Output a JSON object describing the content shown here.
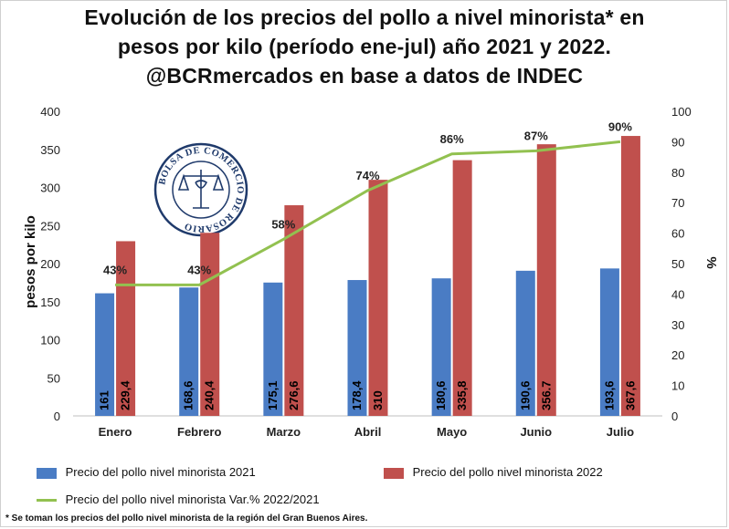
{
  "title": {
    "line1": "Evolución de los precios del pollo a nivel minorista* en",
    "line2": "pesos por kilo (período ene-jul) año 2021 y 2022.",
    "line3": "@BCRmercados en base a datos de INDEC"
  },
  "chart_data": {
    "type": "bar",
    "categories": [
      "Enero",
      "Febrero",
      "Marzo",
      "Abril",
      "Mayo",
      "Junio",
      "Julio"
    ],
    "series": [
      {
        "name": "Precio del pollo nivel minorista 2021",
        "type": "bar",
        "axis": "left",
        "values": [
          161,
          168.6,
          175.1,
          178.4,
          180.6,
          190.6,
          193.6
        ],
        "labels": [
          "161",
          "168,6",
          "175,1",
          "178,4",
          "180,6",
          "190,6",
          "193,6"
        ]
      },
      {
        "name": "Precio del pollo nivel minorista 2022",
        "type": "bar",
        "axis": "left",
        "values": [
          229.4,
          240.4,
          276.6,
          310,
          335.8,
          356.7,
          367.6
        ],
        "labels": [
          "229,4",
          "240,4",
          "276,6",
          "310",
          "335,8",
          "356.7",
          "367,6"
        ]
      },
      {
        "name": "Precio del pollo nivel minorista Var.% 2022/2021",
        "type": "line",
        "axis": "right",
        "values": [
          43,
          43,
          58,
          74,
          86,
          87,
          90
        ],
        "labels": [
          "43%",
          "43%",
          "58%",
          "74%",
          "86%",
          "87%",
          "90%"
        ]
      }
    ],
    "ylabel": "pesos por kilo",
    "y2label": "%",
    "ylim": [
      0,
      400
    ],
    "y2lim": [
      0,
      100
    ],
    "yticks": [
      "0",
      "50",
      "100",
      "150",
      "200",
      "250",
      "300",
      "350",
      "400"
    ],
    "y2ticks": [
      "0",
      "10",
      "20",
      "30",
      "40",
      "50",
      "60",
      "70",
      "80",
      "90",
      "100"
    ],
    "legend_position": "bottom",
    "grid": false
  },
  "colors": {
    "series_2021": "#4a7cc4",
    "series_2022": "#c0504d",
    "series_var": "#92c150"
  },
  "watermark": {
    "text": "BOLSA DE COMERCIO DE ROSARIO"
  },
  "footnote": "* Se toman los precios del pollo nivel minorista de la región del Gran Buenos Aires."
}
